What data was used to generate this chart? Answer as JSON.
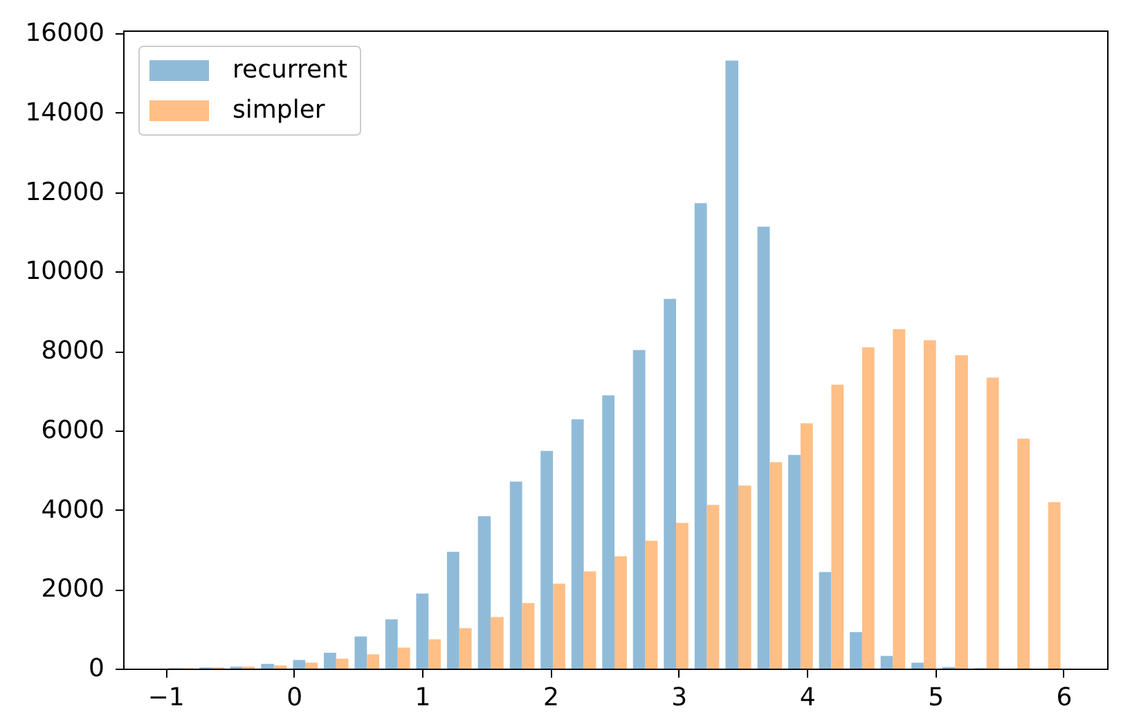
{
  "chart_data": {
    "type": "histogram",
    "bins": [
      -1.0,
      -0.76,
      -0.52,
      -0.28,
      -0.03,
      0.21,
      0.45,
      0.69,
      0.93,
      1.17,
      1.41,
      1.66,
      1.9,
      2.14,
      2.38,
      2.62,
      2.86,
      3.1,
      3.34,
      3.59,
      3.83,
      4.07,
      4.31,
      4.55,
      4.79,
      5.03,
      5.28,
      5.52,
      5.76,
      6.0
    ],
    "series": [
      {
        "name": "recurrent",
        "color": "#8fbbd9",
        "values": [
          10,
          30,
          50,
          120,
          220,
          400,
          810,
          1240,
          1890,
          2940,
          3840,
          4710,
          5480,
          6280,
          6880,
          8020,
          9310,
          11720,
          15310,
          11130,
          5380,
          2430,
          920,
          320,
          150,
          40,
          10,
          0,
          0
        ]
      },
      {
        "name": "simpler",
        "color": "#ffbf86",
        "values": [
          10,
          30,
          50,
          80,
          150,
          250,
          360,
          530,
          740,
          1020,
          1300,
          1650,
          2140,
          2450,
          2830,
          3220,
          3670,
          4120,
          4610,
          5200,
          6180,
          7150,
          8090,
          8550,
          8270,
          7890,
          7330,
          5790,
          4190
        ]
      }
    ],
    "xlim": [
      -1.33,
      6.34
    ],
    "ylim": [
      0,
      16070
    ],
    "xticks": [
      -1,
      0,
      1,
      2,
      3,
      4,
      5,
      6
    ],
    "yticks": [
      0,
      2000,
      4000,
      6000,
      8000,
      10000,
      12000,
      14000,
      16000
    ],
    "legend": "top left",
    "grid": false
  }
}
